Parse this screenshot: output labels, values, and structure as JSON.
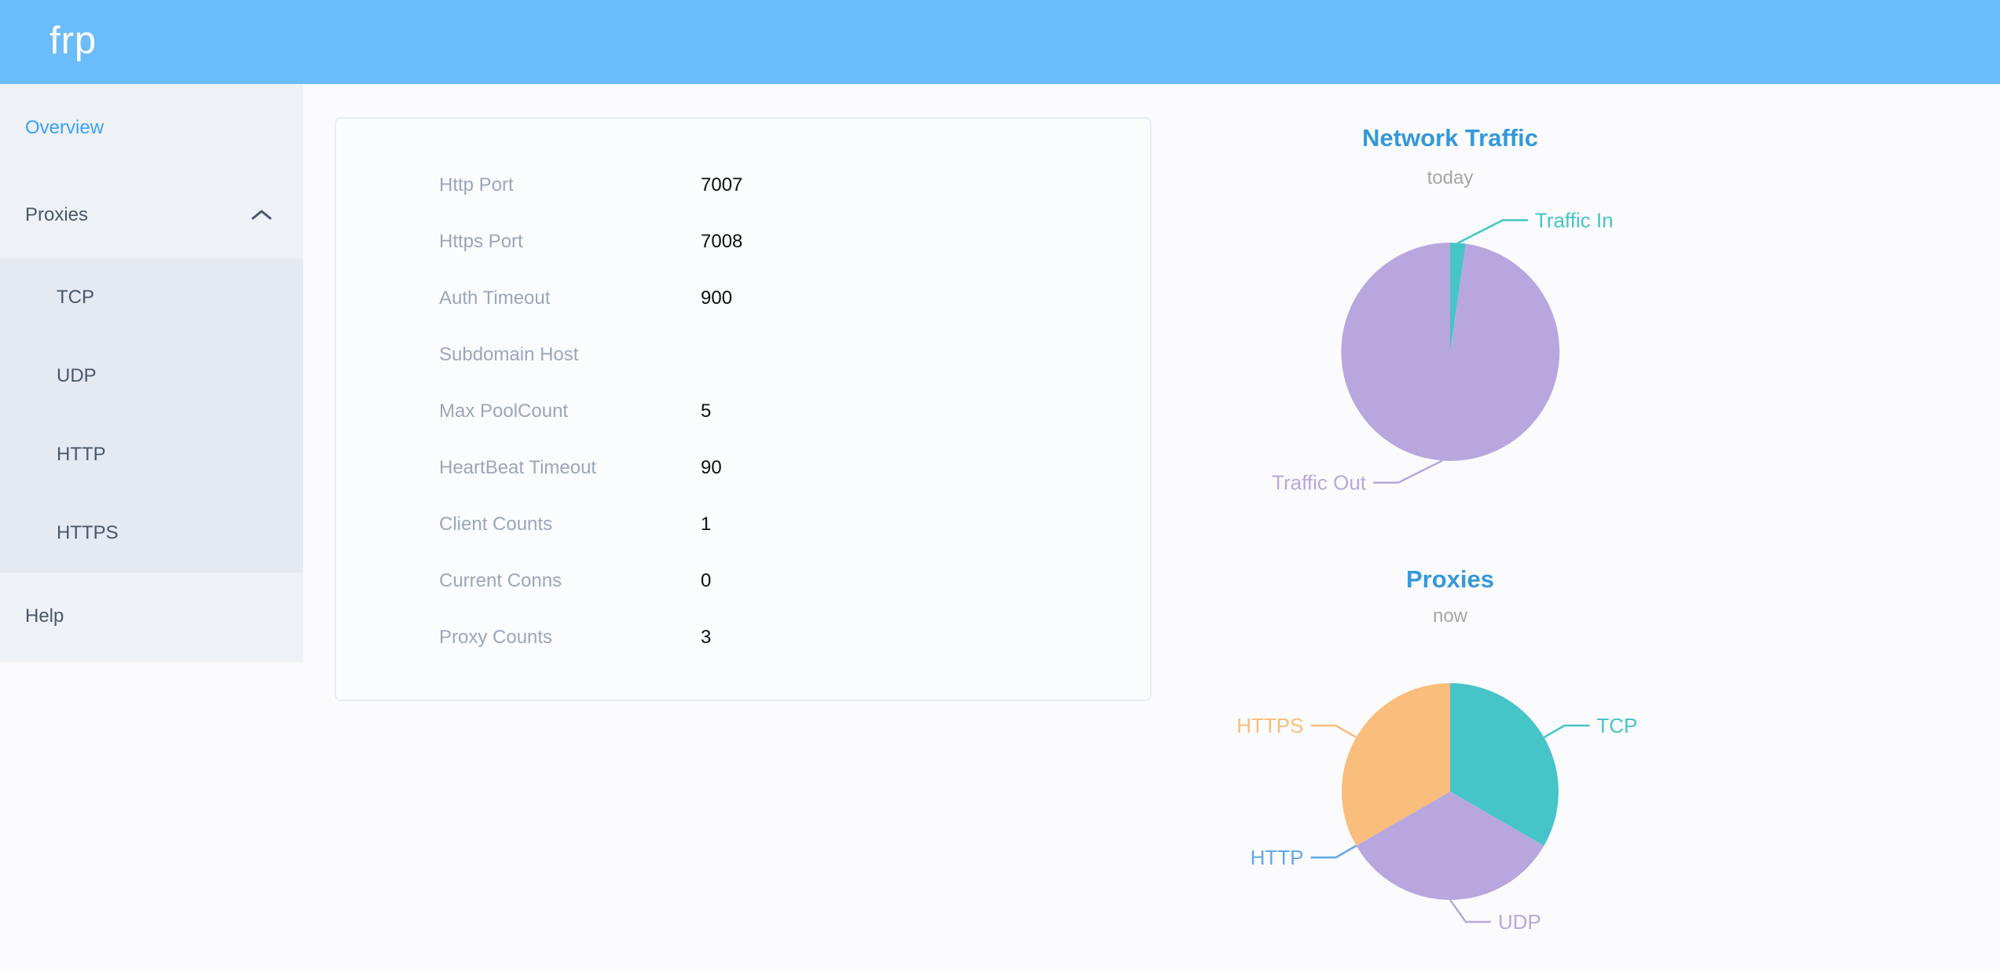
{
  "palette": {
    "header_bg": "#6bbcfa",
    "sidebar_bg": "#eef1f6",
    "submenu_bg": "#e5e9f1",
    "menu_text": "#48576a",
    "active_menu_text": "#3aa0f8",
    "title_blue": "#3598db",
    "subtitle_gray": "#a6a6a6",
    "config_label_gray": "#9ba6ba",
    "pie_teal": "#45c5c8",
    "pie_purple": "#b8a7de",
    "pie_orange": "#f9bd7c",
    "pie_blue": "#60a8ee"
  },
  "header": {
    "logo": "frp"
  },
  "sidebar": {
    "items": [
      {
        "id": "overview",
        "label": "Overview",
        "active": true
      },
      {
        "id": "proxies",
        "label": "Proxies",
        "expanded": true,
        "children": [
          {
            "id": "tcp",
            "label": "TCP"
          },
          {
            "id": "udp",
            "label": "UDP"
          },
          {
            "id": "http",
            "label": "HTTP"
          },
          {
            "id": "https",
            "label": "HTTPS"
          }
        ]
      },
      {
        "id": "help",
        "label": "Help"
      }
    ]
  },
  "overview_panel": {
    "rows": [
      {
        "label": "Http Port",
        "value": "7007"
      },
      {
        "label": "Https Port",
        "value": "7008"
      },
      {
        "label": "Auth Timeout",
        "value": "900"
      },
      {
        "label": "Subdomain Host",
        "value": ""
      },
      {
        "label": "Max PoolCount",
        "value": "5"
      },
      {
        "label": "HeartBeat Timeout",
        "value": "90"
      },
      {
        "label": "Client Counts",
        "value": "1"
      },
      {
        "label": "Current Conns",
        "value": "0"
      },
      {
        "label": "Proxy Counts",
        "value": "3"
      }
    ]
  },
  "chart_data": [
    {
      "type": "pie",
      "title": "Network Traffic",
      "subtitle": "today",
      "legend": "none",
      "label_position": "outside",
      "unit": "percent_of_total_traffic",
      "slices": [
        {
          "label": "Traffic In",
          "value": 2.3,
          "color": "#45c5c8"
        },
        {
          "label": "Traffic Out",
          "value": 97.7,
          "color": "#b8a7de"
        }
      ]
    },
    {
      "type": "pie",
      "title": "Proxies",
      "subtitle": "now",
      "legend": "none",
      "label_position": "outside",
      "unit": "proxy_count",
      "slices": [
        {
          "label": "TCP",
          "value": 1,
          "color": "#45c5c8"
        },
        {
          "label": "UDP",
          "value": 1,
          "color": "#b8a7de"
        },
        {
          "label": "HTTP",
          "value": 0,
          "color": "#60a8ee"
        },
        {
          "label": "HTTPS",
          "value": 1,
          "color": "#f9bd7c"
        }
      ]
    }
  ]
}
